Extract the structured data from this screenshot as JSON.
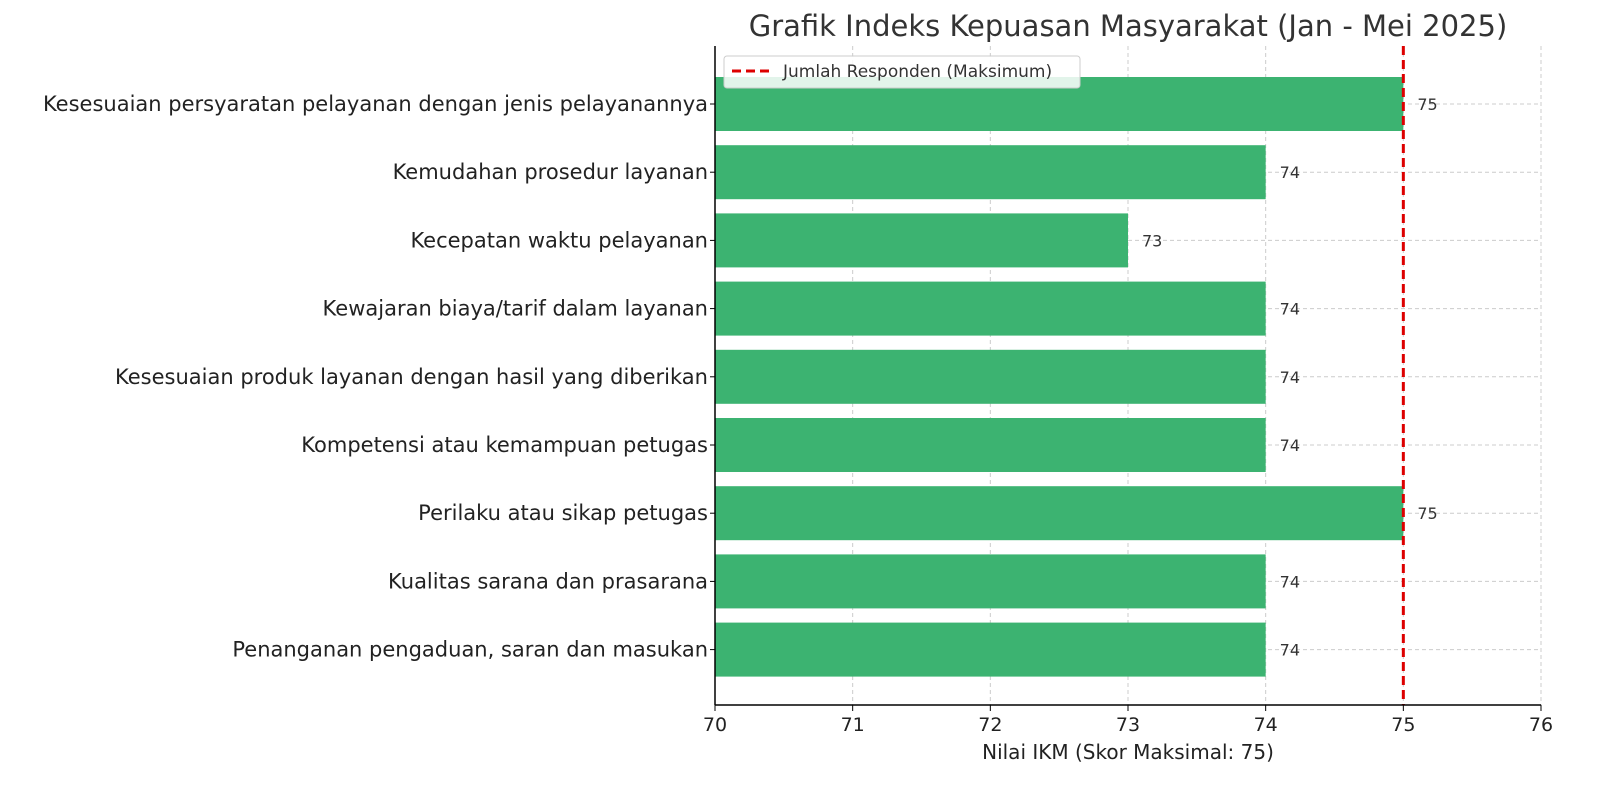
{
  "chart_data": {
    "type": "bar",
    "orientation": "horizontal",
    "title": "Grafik Indeks Kepuasan Masyarakat (Jan - Mei 2025)",
    "xlabel": "Nilai IKM (Skor Maksimal: 75)",
    "ylabel": "",
    "categories": [
      "Kesesuaian persyaratan pelayanan dengan jenis pelayanannya",
      "Kemudahan prosedur layanan",
      "Kecepatan waktu pelayanan",
      "Kewajaran biaya/tarif dalam layanan",
      "Kesesuaian produk layanan dengan hasil yang diberikan",
      "Kompetensi atau kemampuan petugas",
      "Perilaku atau sikap petugas",
      "Kualitas sarana dan prasarana",
      "Penanganan pengaduan, saran dan masukan"
    ],
    "values": [
      75,
      74,
      73,
      74,
      74,
      74,
      75,
      74,
      74
    ],
    "value_labels": [
      "75",
      "74",
      "73",
      "74",
      "74",
      "74",
      "75",
      "74",
      "74"
    ],
    "xlim": [
      70,
      76
    ],
    "x_ticks": [
      "70",
      "71",
      "72",
      "73",
      "74",
      "75",
      "76"
    ],
    "reference_line": {
      "value": 75,
      "label": "Jumlah Responden (Maksimum)",
      "style": "dashed",
      "color": "#dd0000"
    },
    "grid": true,
    "legend_position": "top-left",
    "bar_color": "#3cb371"
  }
}
